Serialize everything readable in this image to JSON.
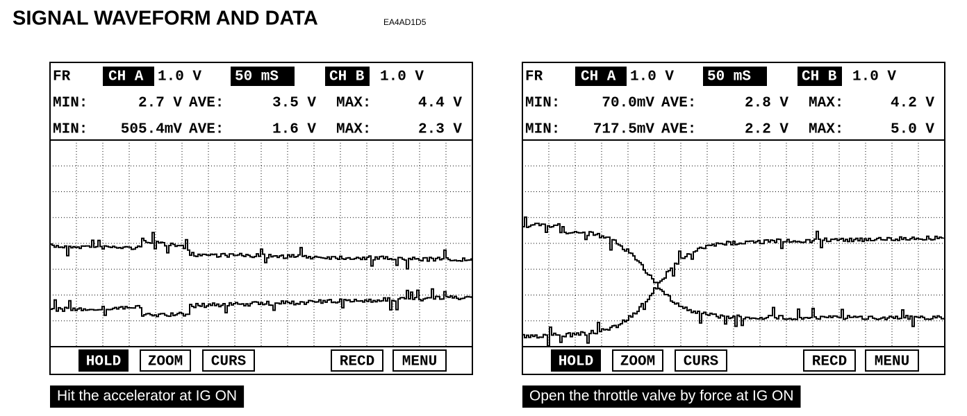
{
  "header": {
    "title": "SIGNAL WAVEFORM AND DATA",
    "code": "EA4AD1D5"
  },
  "panels": [
    {
      "rows": [
        [
          "FR",
          "CH A",
          "1.0 V",
          "50 mS",
          "CH B",
          "1.0 V"
        ],
        [
          "MIN:",
          "2.7 V",
          "AVE:",
          "3.5 V",
          "MAX:",
          "4.4 V"
        ],
        [
          "MIN:",
          "505.4mV",
          "AVE:",
          "1.6 V",
          "MAX:",
          "2.3 V"
        ]
      ],
      "buttons": [
        "HOLD",
        "ZOOM",
        "CURS",
        "RECD",
        "MENU"
      ],
      "caption": "Hit the accelerator at IG ON"
    },
    {
      "rows": [
        [
          "FR",
          "CH A",
          "1.0 V",
          "50 mS",
          "CH B",
          "1.0 V"
        ],
        [
          "MIN:",
          "70.0mV",
          "AVE:",
          "2.8 V",
          "MAX:",
          "4.2 V"
        ],
        [
          "MIN:",
          "717.5mV",
          "AVE:",
          "2.2 V",
          "MAX:",
          "5.0 V"
        ]
      ],
      "buttons": [
        "HOLD",
        "ZOOM",
        "CURS",
        "RECD",
        "MENU"
      ],
      "caption": "Open the throttle valve by force at IG ON"
    }
  ]
}
